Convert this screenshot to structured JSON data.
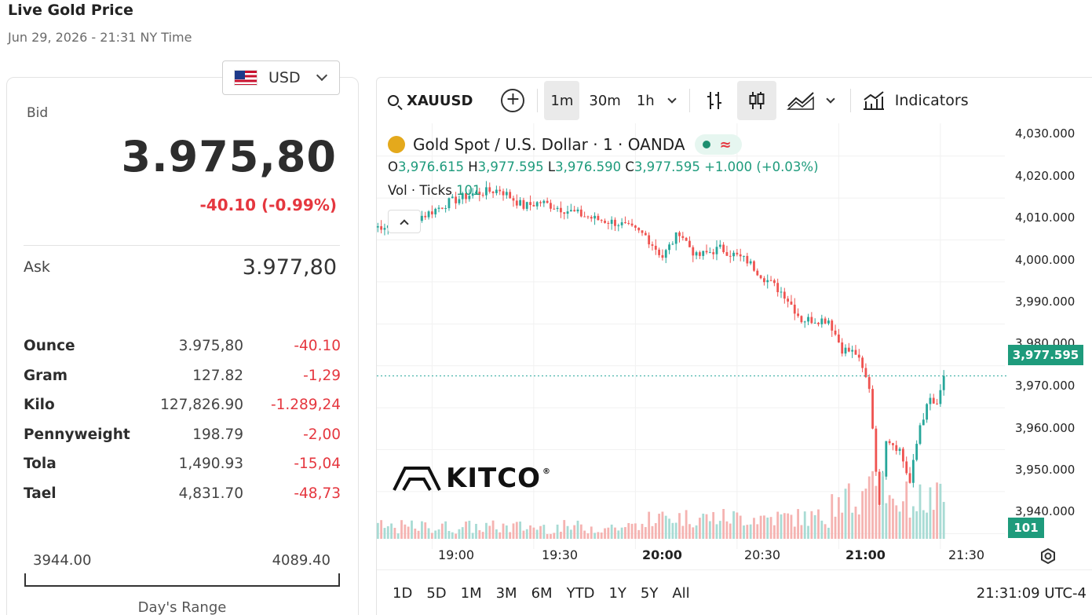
{
  "page": {
    "title": "Live Gold Price",
    "subtitle": "Jun 29, 2026 - 21:31 NY Time"
  },
  "currency": {
    "selected": "USD",
    "flag_icon": "us-flag-icon"
  },
  "quote": {
    "bid_label": "Bid",
    "bid_value": "3.975,80",
    "bid_change": "-40.10 (-0.99%)",
    "ask_label": "Ask",
    "ask_value": "3.977,80",
    "colors": {
      "negative": "#e5373f",
      "positive": "#1e9b7c"
    }
  },
  "units": [
    {
      "name": "Ounce",
      "value": "3.975,80",
      "change": "-40.10"
    },
    {
      "name": "Gram",
      "value": "127.82",
      "change": "-1,29"
    },
    {
      "name": "Kilo",
      "value": "127,826.90",
      "change": "-1.289,24"
    },
    {
      "name": "Pennyweight",
      "value": "198.79",
      "change": "-2,00"
    },
    {
      "name": "Tola",
      "value": "1,490.93",
      "change": "-15,04"
    },
    {
      "name": "Tael",
      "value": "4,831.70",
      "change": "-48,73"
    }
  ],
  "day_range": {
    "low": "3944.00",
    "high": "4089.40",
    "caption": "Day's Range"
  },
  "chart": {
    "symbol": "XAUUSD",
    "intervals": [
      "1m",
      "30m",
      "1h"
    ],
    "active_interval": "1m",
    "indicators_label": "Indicators",
    "legend_title": "Gold Spot / U.S. Dollar · 1 · OANDA",
    "status_symbol": "≈",
    "ohlc": {
      "o_label": "O",
      "o": "3,976.615",
      "h_label": "H",
      "h": "3,977.595",
      "l_label": "L",
      "l": "3,976.590",
      "c_label": "C",
      "c": "3,977.595",
      "change": "+1.000 (+0.03%)"
    },
    "vol_label": "Vol · Ticks",
    "vol_value": "101",
    "watermark": "KITCO",
    "last_price_tag": "3,977.595",
    "volume_tag": "101",
    "y_ticks": [
      "4,030.000",
      "4,020.000",
      "4,010.000",
      "4,000.000",
      "3,990.000",
      "3,980.000",
      "3,970.000",
      "3,960.000",
      "3,950.000",
      "3,940.000"
    ],
    "x_ticks": [
      "19:00",
      "19:30",
      "20:00",
      "20:30",
      "21:00",
      "21:30"
    ],
    "range_buttons": [
      "1D",
      "5D",
      "1M",
      "3M",
      "6M",
      "YTD",
      "1Y",
      "5Y",
      "All"
    ],
    "clock": "21:31:09 UTC-4"
  },
  "chart_data": {
    "type": "candlestick",
    "ylim": [
      3936,
      4032
    ],
    "x_start": "18:43",
    "x_end": "21:31",
    "anchors": [
      [
        "18:43",
        4013
      ],
      [
        "18:50",
        4014
      ],
      [
        "18:58",
        4016
      ],
      [
        "19:05",
        4019
      ],
      [
        "19:12",
        4021
      ],
      [
        "19:20",
        4022
      ],
      [
        "19:27",
        4018
      ],
      [
        "19:32",
        4019
      ],
      [
        "19:40",
        4017
      ],
      [
        "19:48",
        4015
      ],
      [
        "19:55",
        4014
      ],
      [
        "20:03",
        4011
      ],
      [
        "20:08",
        4006
      ],
      [
        "20:13",
        4012
      ],
      [
        "20:18",
        4006
      ],
      [
        "20:25",
        4008
      ],
      [
        "20:33",
        4005
      ],
      [
        "20:38",
        4001
      ],
      [
        "20:44",
        3997
      ],
      [
        "20:49",
        3991
      ],
      [
        "20:57",
        3991
      ],
      [
        "21:01",
        3984
      ],
      [
        "21:05",
        3983
      ],
      [
        "21:09",
        3975
      ],
      [
        "21:12",
        3946
      ],
      [
        "21:14",
        3963
      ],
      [
        "21:18",
        3960
      ],
      [
        "21:21",
        3952
      ],
      [
        "21:24",
        3966
      ],
      [
        "21:27",
        3972
      ],
      [
        "21:29",
        3970
      ],
      [
        "21:31",
        3977.6
      ]
    ]
  }
}
